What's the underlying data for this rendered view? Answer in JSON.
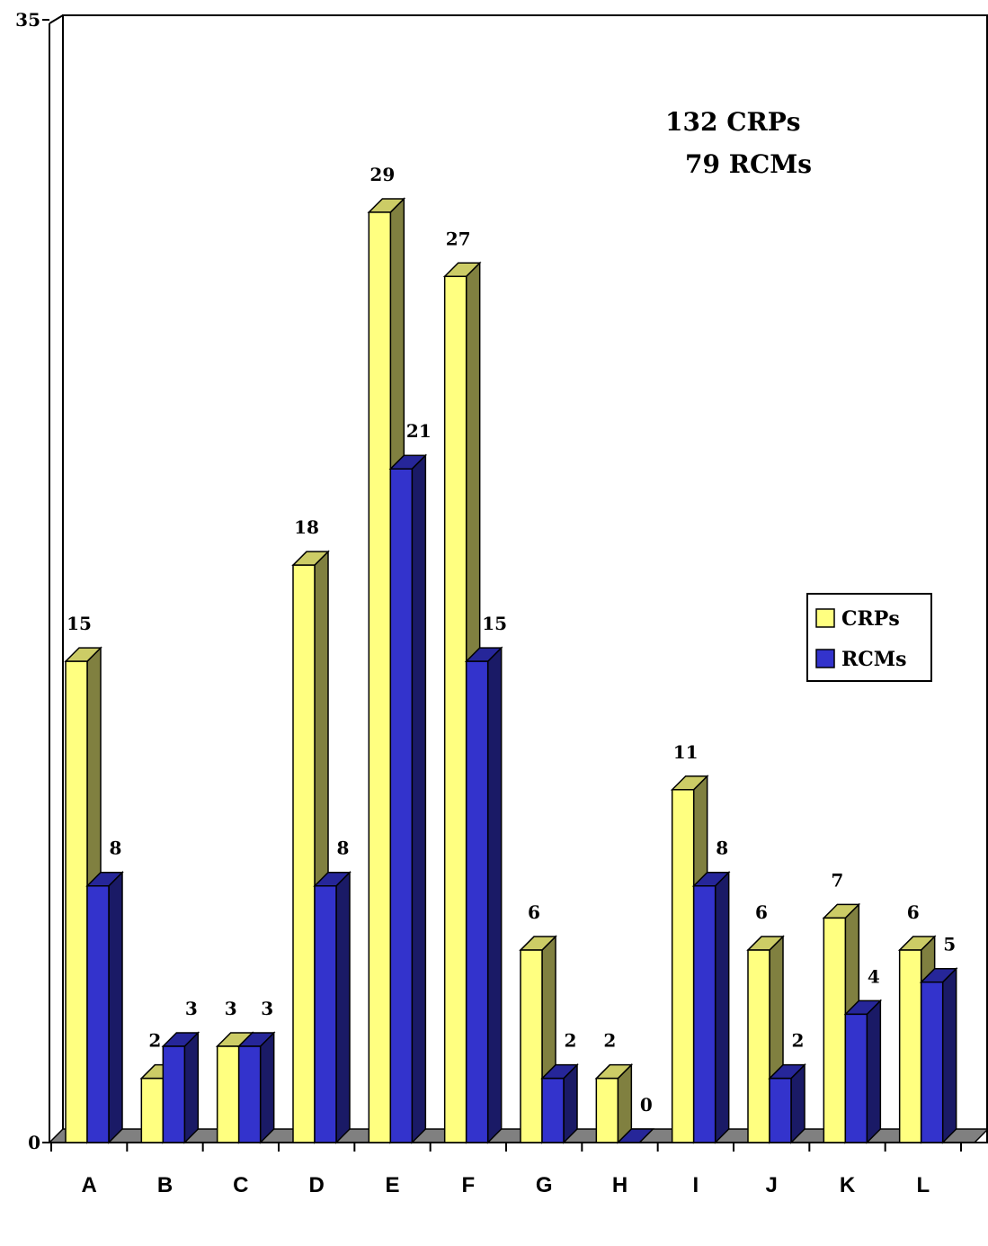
{
  "chart_data": {
    "type": "bar",
    "categories": [
      "A",
      "B",
      "C",
      "D",
      "E",
      "F",
      "G",
      "H",
      "I",
      "J",
      "K",
      "L"
    ],
    "series": [
      {
        "name": "CRPs",
        "values": [
          15,
          2,
          3,
          18,
          29,
          27,
          6,
          2,
          11,
          6,
          7,
          6
        ],
        "color": "#ffff80",
        "side_color": "#808040",
        "top_color": "#cccc66"
      },
      {
        "name": "RCMs",
        "values": [
          8,
          3,
          3,
          8,
          21,
          15,
          2,
          0,
          8,
          2,
          4,
          5
        ],
        "color": "#3333cc",
        "side_color": "#1a1a66",
        "top_color": "#262699"
      }
    ],
    "ylim": [
      0,
      35
    ],
    "y_ticks": [
      "0",
      "35"
    ],
    "annotation": {
      "line1": "132 CRPs",
      "line2": "79 RCMs"
    },
    "legend": {
      "placement": "right",
      "items": [
        "CRPs",
        "RCMs"
      ]
    },
    "floor_color": "#808080",
    "grid": false
  }
}
